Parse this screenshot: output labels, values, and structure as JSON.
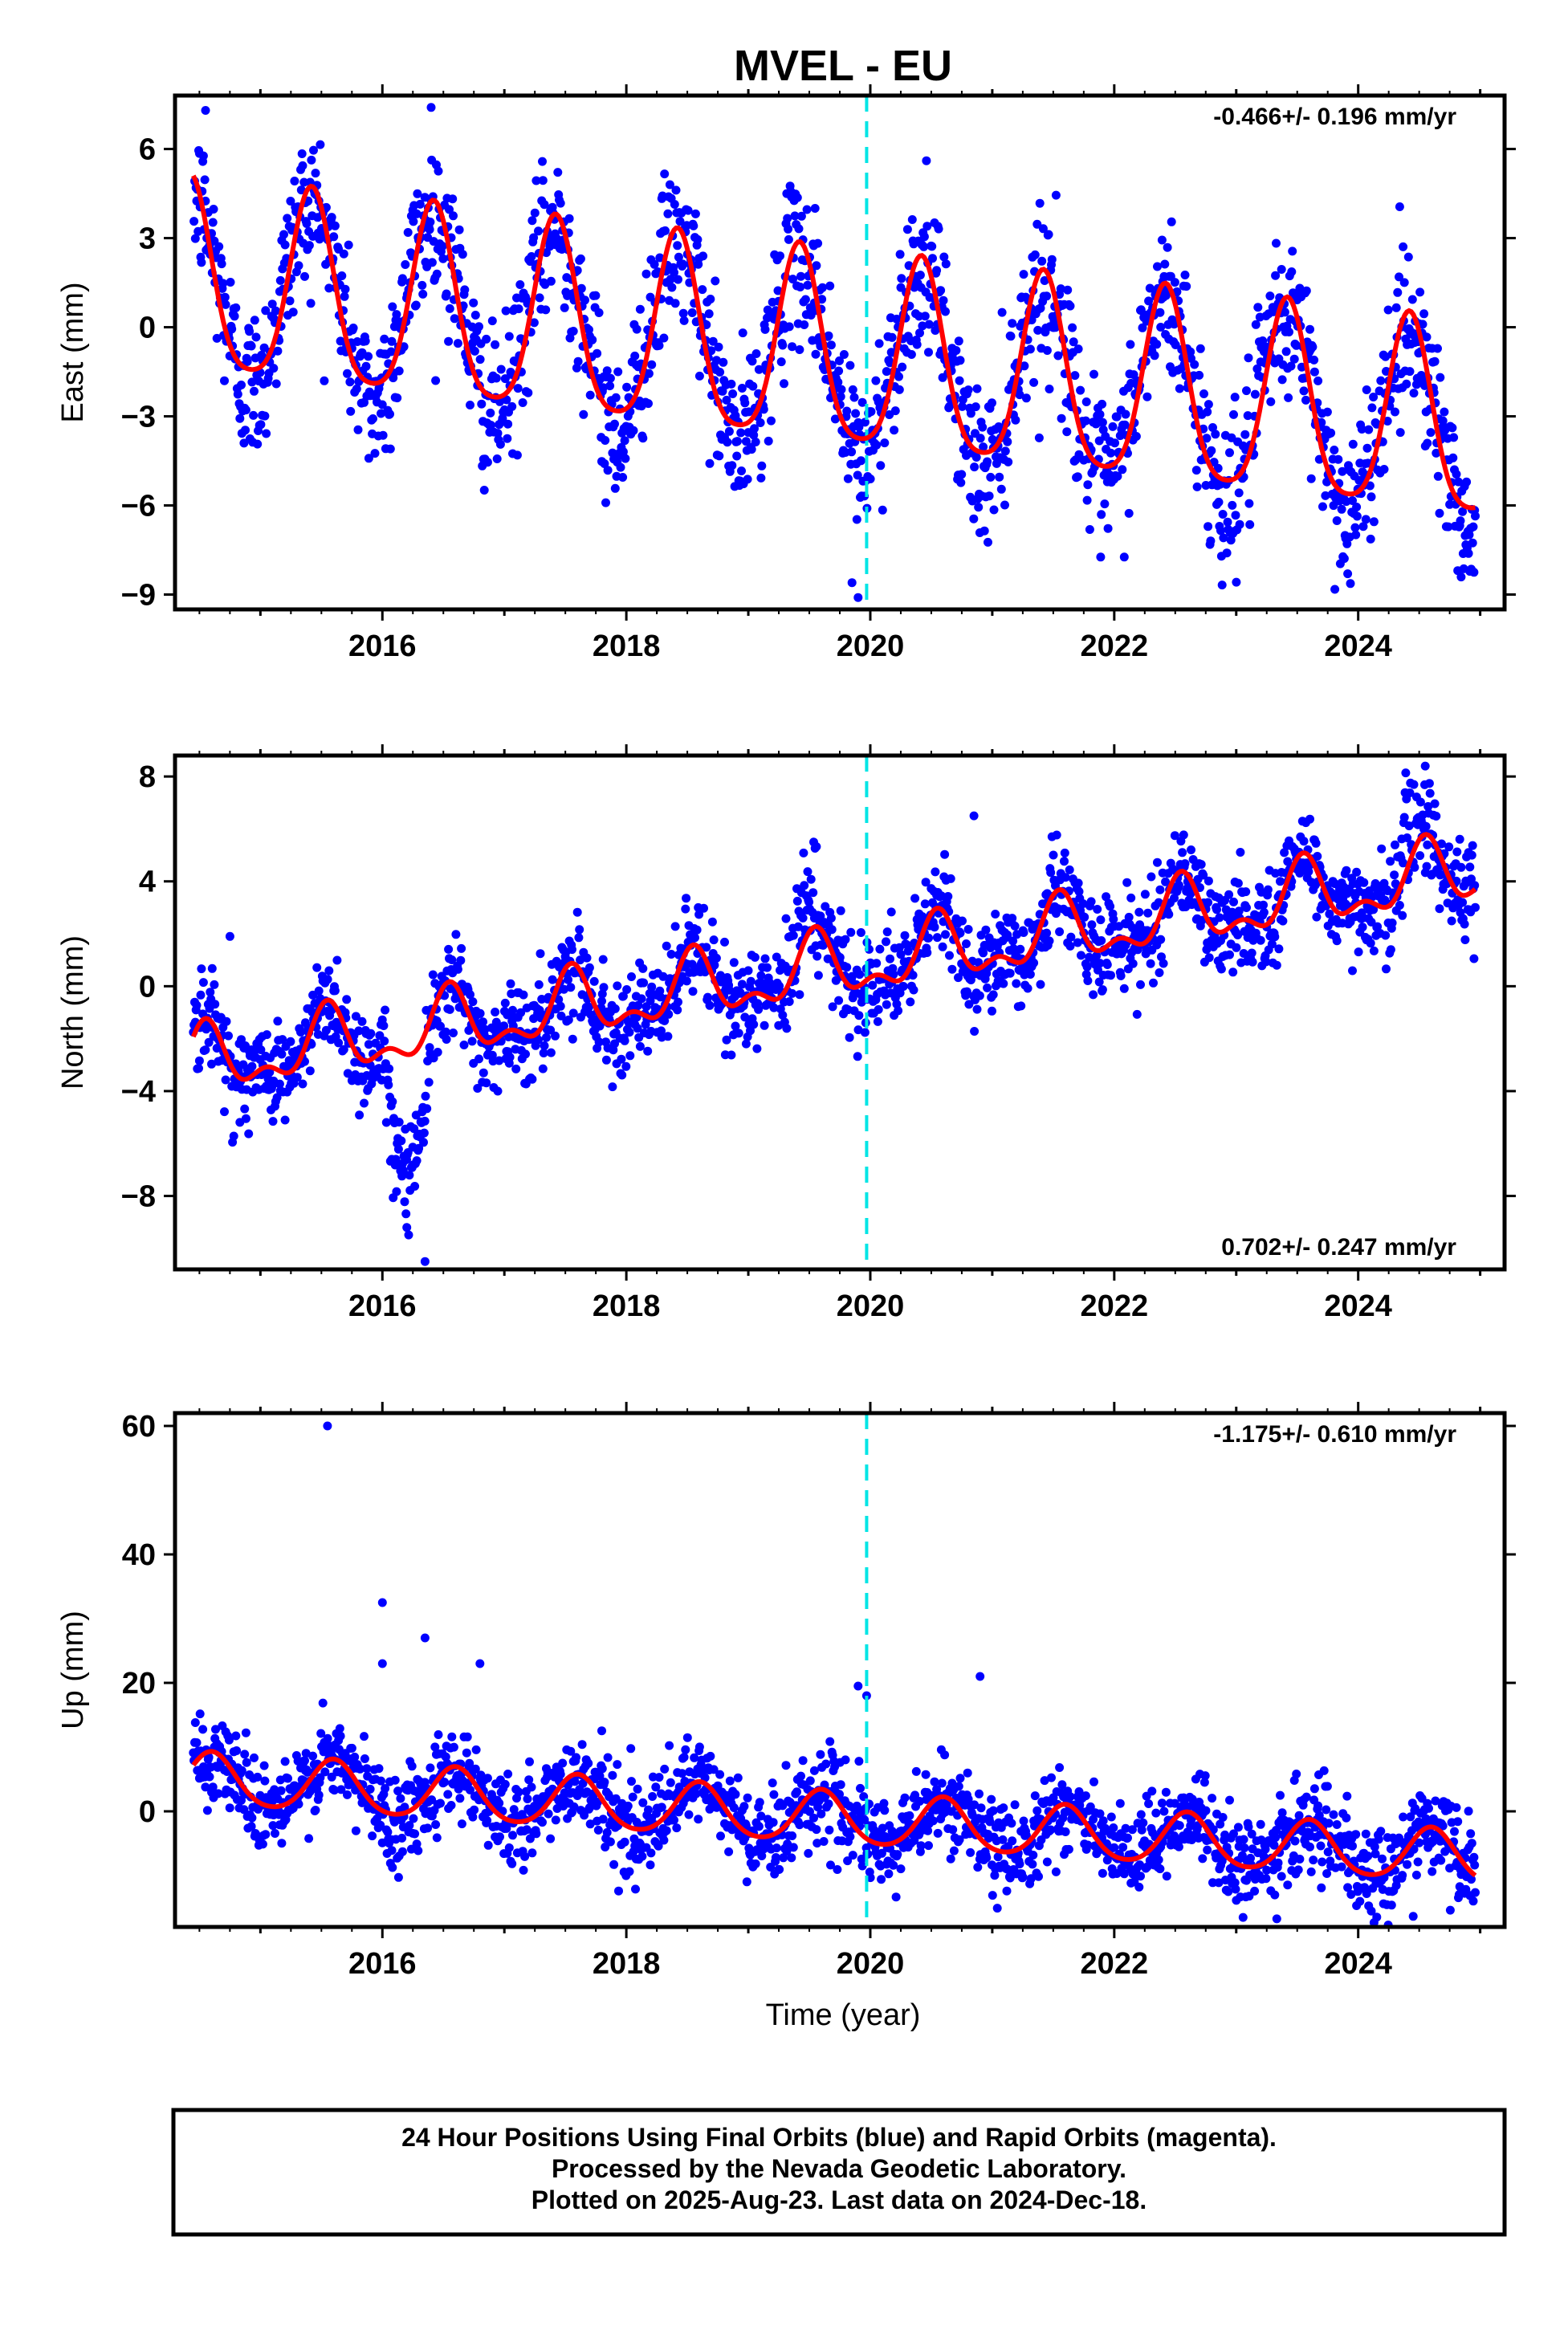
{
  "figure": {
    "title": "MVEL - EU",
    "xlabel": "Time (year)",
    "footer": [
      "24 Hour Positions Using Final Orbits (blue) and Rapid Orbits (magenta).",
      "Processed by the Nevada Geodetic Laboratory.",
      "Plotted on 2025-Aug-23. Last data on 2024-Dec-18."
    ]
  },
  "colors": {
    "points": "#0000ff",
    "model": "#ff0000",
    "event_line": "#00e5e5",
    "frame": "#000000"
  },
  "chart_data": [
    {
      "type": "scatter",
      "component": "East",
      "ylabel": "East (mm)",
      "rate_label": "-0.466+/- 0.196 mm/yr",
      "rate_position": "top-right",
      "x_unit": "decimal year",
      "xlim": [
        2014.3,
        2025.2
      ],
      "ylim": [
        -9.5,
        7.8
      ],
      "xticks": [
        2016,
        2018,
        2020,
        2022,
        2024
      ],
      "yticks": [
        6,
        3,
        0,
        -3,
        -6,
        -9
      ],
      "ytick_labels": [
        "6",
        "3",
        "0",
        "−3",
        "−6",
        "−9"
      ],
      "event_line_x": 2019.97,
      "data_span": [
        2014.45,
        2024.96
      ],
      "series": [
        {
          "role": "daily positions",
          "style": "points",
          "trend_mm_per_yr": -0.466,
          "intercept_mm": 1.4,
          "annual_amplitude_mm": 3.2,
          "annual_peak": 0.42,
          "scatter_sd_mm": 1.3,
          "outliers": [
            [
              2019.85,
              -8.6
            ],
            [
              2019.9,
              -9.1
            ],
            [
              2016.4,
              7.4
            ],
            [
              2014.55,
              7.3
            ]
          ]
        },
        {
          "role": "model fit",
          "style": "line",
          "trend_mm_per_yr": -0.466,
          "intercept_mm": 1.4,
          "annual_amplitude_mm": 3.2,
          "annual_peak": 0.42,
          "semiannual_amplitude_mm": 0.6
        }
      ]
    },
    {
      "type": "scatter",
      "component": "North",
      "ylabel": "North (mm)",
      "rate_label": "0.702+/- 0.247 mm/yr",
      "rate_position": "bottom-right",
      "x_unit": "decimal year",
      "xlim": [
        2014.3,
        2025.2
      ],
      "ylim": [
        -10.8,
        8.8
      ],
      "xticks": [
        2016,
        2018,
        2020,
        2022,
        2024
      ],
      "yticks": [
        8,
        4,
        0,
        -4,
        -8
      ],
      "ytick_labels": [
        "8",
        "4",
        "0",
        "−4",
        "−8"
      ],
      "event_line_x": 2019.97,
      "data_span": [
        2014.45,
        2024.96
      ],
      "series": [
        {
          "role": "daily positions",
          "style": "points",
          "trend_mm_per_yr": 0.702,
          "intercept_mm": -3.0,
          "annual_amplitude_mm": 1.1,
          "annual_peak": 0.55,
          "semiannual_amplitude_mm": 0.6,
          "scatter_sd_mm": 0.9,
          "excursions": [
            [
              2016.0,
              2016.4,
              -4.5
            ],
            [
              2019.3,
              2019.6,
              1.5
            ],
            [
              2024.3,
              2024.6,
              1.5
            ]
          ],
          "outliers": [
            [
              2016.35,
              -10.5
            ],
            [
              2016.2,
              -9.2
            ],
            [
              2024.55,
              8.4
            ],
            [
              2020.85,
              6.5
            ],
            [
              2014.75,
              1.9
            ]
          ]
        },
        {
          "role": "model fit",
          "style": "line",
          "trend_mm_per_yr": 0.702,
          "intercept_mm": -3.0,
          "annual_amplitude_mm": 1.1,
          "annual_peak": 0.55,
          "semiannual_amplitude_mm": 0.6
        }
      ]
    },
    {
      "type": "scatter",
      "component": "Up",
      "ylabel": "Up (mm)",
      "rate_label": "-1.175+/- 0.610 mm/yr",
      "rate_position": "top-right",
      "x_unit": "decimal year",
      "xlim": [
        2014.3,
        2025.2
      ],
      "ylim": [
        -18.0,
        62.0
      ],
      "xticks": [
        2016,
        2018,
        2020,
        2022,
        2024
      ],
      "yticks": [
        60,
        40,
        20,
        0
      ],
      "ytick_labels": [
        "60",
        "40",
        "20",
        "0"
      ],
      "event_line_x": 2019.97,
      "data_span": [
        2014.45,
        2024.96
      ],
      "series": [
        {
          "role": "daily positions",
          "style": "points",
          "trend_mm_per_yr": -1.175,
          "intercept_mm": 5.0,
          "annual_amplitude_mm": 4.0,
          "annual_peak": 0.6,
          "scatter_sd_mm": 3.5,
          "outliers": [
            [
              2015.55,
              60.0
            ],
            [
              2016.0,
              32.5
            ],
            [
              2016.35,
              27.0
            ],
            [
              2016.0,
              23.0
            ],
            [
              2016.8,
              23.0
            ],
            [
              2020.9,
              21.0
            ],
            [
              2019.9,
              19.5
            ],
            [
              2019.97,
              18.0
            ]
          ]
        },
        {
          "role": "model fit",
          "style": "line",
          "trend_mm_per_yr": -1.175,
          "intercept_mm": 5.0,
          "annual_amplitude_mm": 4.0,
          "annual_peak": 0.6,
          "semiannual_amplitude_mm": 0.5
        }
      ]
    }
  ]
}
